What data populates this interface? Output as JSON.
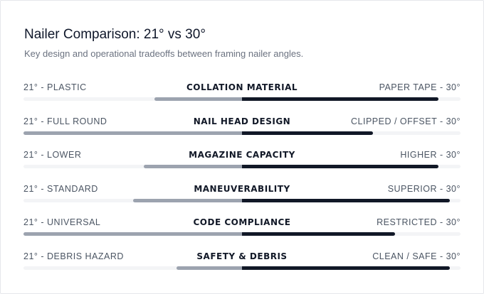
{
  "chart_data": {
    "type": "bar",
    "title": "Nailer Comparison: 21° vs 30°",
    "subtitle": "Key design and operational tradeoffs between framing nailer angles.",
    "scale": [
      0,
      100
    ],
    "rows": [
      {
        "category": "COLLATION MATERIAL",
        "left_label": "21° - PLASTIC",
        "right_label": "PAPER TAPE - 30°",
        "left_value": 40,
        "right_value": 90
      },
      {
        "category": "NAIL HEAD DESIGN",
        "left_label": "21° - FULL ROUND",
        "right_label": "CLIPPED / OFFSET - 30°",
        "left_value": 100,
        "right_value": 60
      },
      {
        "category": "MAGAZINE CAPACITY",
        "left_label": "21° - LOWER",
        "right_label": "HIGHER - 30°",
        "left_value": 45,
        "right_value": 90
      },
      {
        "category": "MANEUVERABILITY",
        "left_label": "21° - STANDARD",
        "right_label": "SUPERIOR - 30°",
        "left_value": 50,
        "right_value": 95
      },
      {
        "category": "CODE COMPLIANCE",
        "left_label": "21° - UNIVERSAL",
        "right_label": "RESTRICTED - 30°",
        "left_value": 100,
        "right_value": 70
      },
      {
        "category": "SAFETY & DEBRIS",
        "left_label": "21° - DEBRIS HAZARD",
        "right_label": "CLEAN / SAFE - 30°",
        "left_value": 30,
        "right_value": 95
      }
    ]
  },
  "colors": {
    "left_bar": "#9ca3af",
    "right_bar": "#111827",
    "track": "#f3f4f6"
  }
}
